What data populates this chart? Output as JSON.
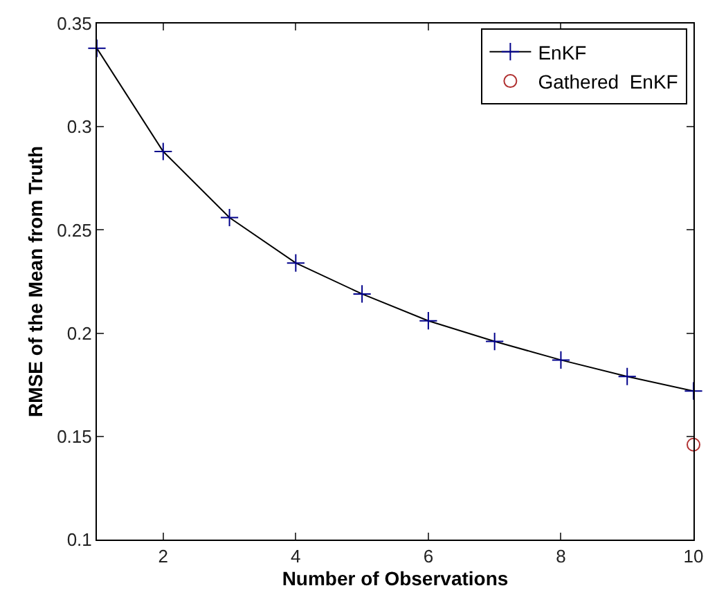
{
  "chart_data": {
    "type": "line",
    "xlabel": "Number of Observations",
    "ylabel": "RMSE of the Mean from Truth",
    "x": [
      1,
      2,
      3,
      4,
      5,
      6,
      7,
      8,
      9,
      10
    ],
    "series": [
      {
        "name": "EnKF",
        "color": "#000000",
        "marker": "cross",
        "values": [
          0.338,
          0.288,
          0.256,
          0.234,
          0.219,
          0.206,
          0.196,
          0.187,
          0.179,
          0.172
        ]
      },
      {
        "name": "Gathered  EnKF",
        "type": "scatter",
        "color": "#b03030",
        "marker": "circle",
        "x": [
          10
        ],
        "values": [
          0.146
        ]
      }
    ],
    "xlim": [
      1,
      10
    ],
    "xticks": [
      2,
      4,
      6,
      8,
      10
    ],
    "ylim": [
      0.1,
      0.35
    ],
    "yticks": [
      0.1,
      0.15,
      0.2,
      0.25,
      0.3,
      0.35
    ],
    "legend": "top right"
  }
}
